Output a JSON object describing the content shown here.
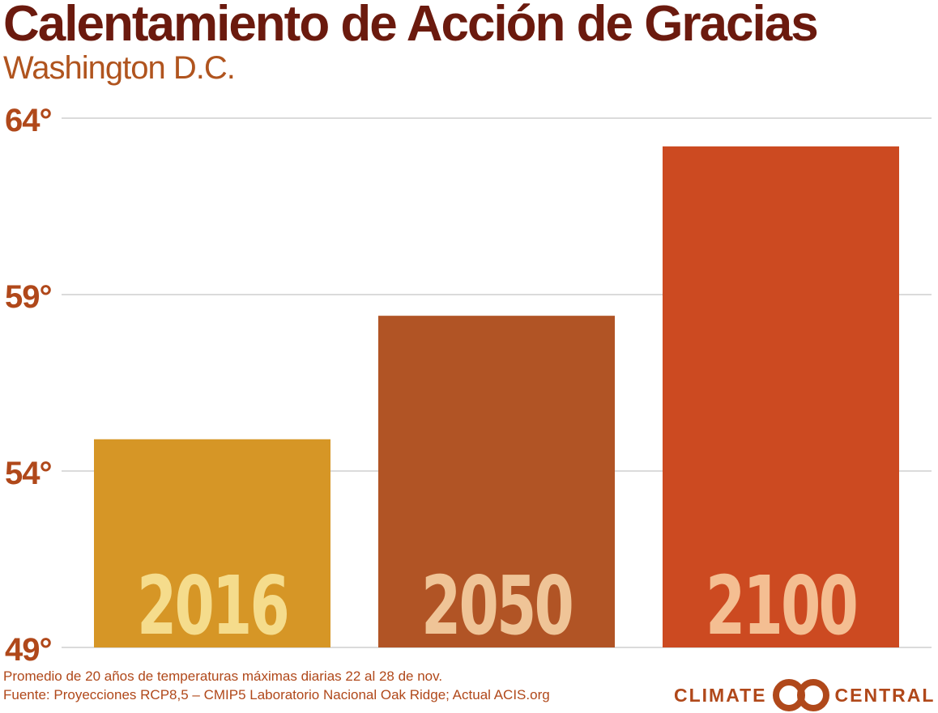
{
  "chart_data": {
    "type": "bar",
    "title": "Calentamiento de Acción de Gracias",
    "subtitle": "Washington D.C.",
    "categories": [
      "2016",
      "2050",
      "2100"
    ],
    "values": [
      54.9,
      58.4,
      63.2
    ],
    "ylim": [
      49,
      64
    ],
    "yticks": [
      49,
      54,
      59,
      64
    ],
    "ytick_labels": [
      "49°",
      "54°",
      "59°",
      "64°"
    ],
    "grid": true,
    "colors": [
      "#d69626",
      "#b15425",
      "#cc4a21"
    ],
    "label_colors": [
      "#f5dc8c",
      "#efc497",
      "#f4be92"
    ]
  },
  "footnotes": [
    "Promedio de 20 años de temperaturas máximas diarias 22 al 28 de nov.",
    "Fuente: Proyecciones RCP8,5 – CMIP5 Laboratorio Nacional Oak Ridge; Actual ACIS.org"
  ],
  "logo": {
    "left_text": "CLIMATE",
    "right_text": "CENTRAL",
    "icon": "climate-central-logo-icon",
    "color": "#b0481a"
  }
}
